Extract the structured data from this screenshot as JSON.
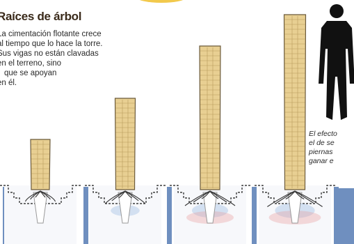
{
  "header": {
    "title": "Raíces de árbol",
    "description_lines": [
      "La cimentación flotante crece",
      "al tiempo que lo hace la torre.",
      "Sus vigas no están clavadas",
      "en el terreno, sino",
      "que se apoyan",
      "en él."
    ]
  },
  "figure_caption": {
    "lines": [
      "El efecto",
      "el de se",
      "piernas",
      "ganar e"
    ]
  },
  "colors": {
    "tower_fill": "#e8cf92",
    "tower_line": "#b89a5c",
    "ground_fill": "#f7f8fb",
    "soil_line": "#3d3d3d",
    "pillar": "#6f8fbf",
    "stress_blue": "#8fb4e0",
    "stress_pink": "#e89a9a",
    "sun": "#f2c94c",
    "silhouette": "#111111"
  },
  "icons": [
    "person-silhouette-icon"
  ],
  "stages": [
    {
      "id": 1,
      "tower_level": 0.28,
      "root_spread": "small"
    },
    {
      "id": 2,
      "tower_level": 0.52,
      "root_spread": "medium"
    },
    {
      "id": 3,
      "tower_level": 0.82,
      "root_spread": "large"
    },
    {
      "id": 4,
      "tower_level": 1.0,
      "root_spread": "largest"
    }
  ]
}
